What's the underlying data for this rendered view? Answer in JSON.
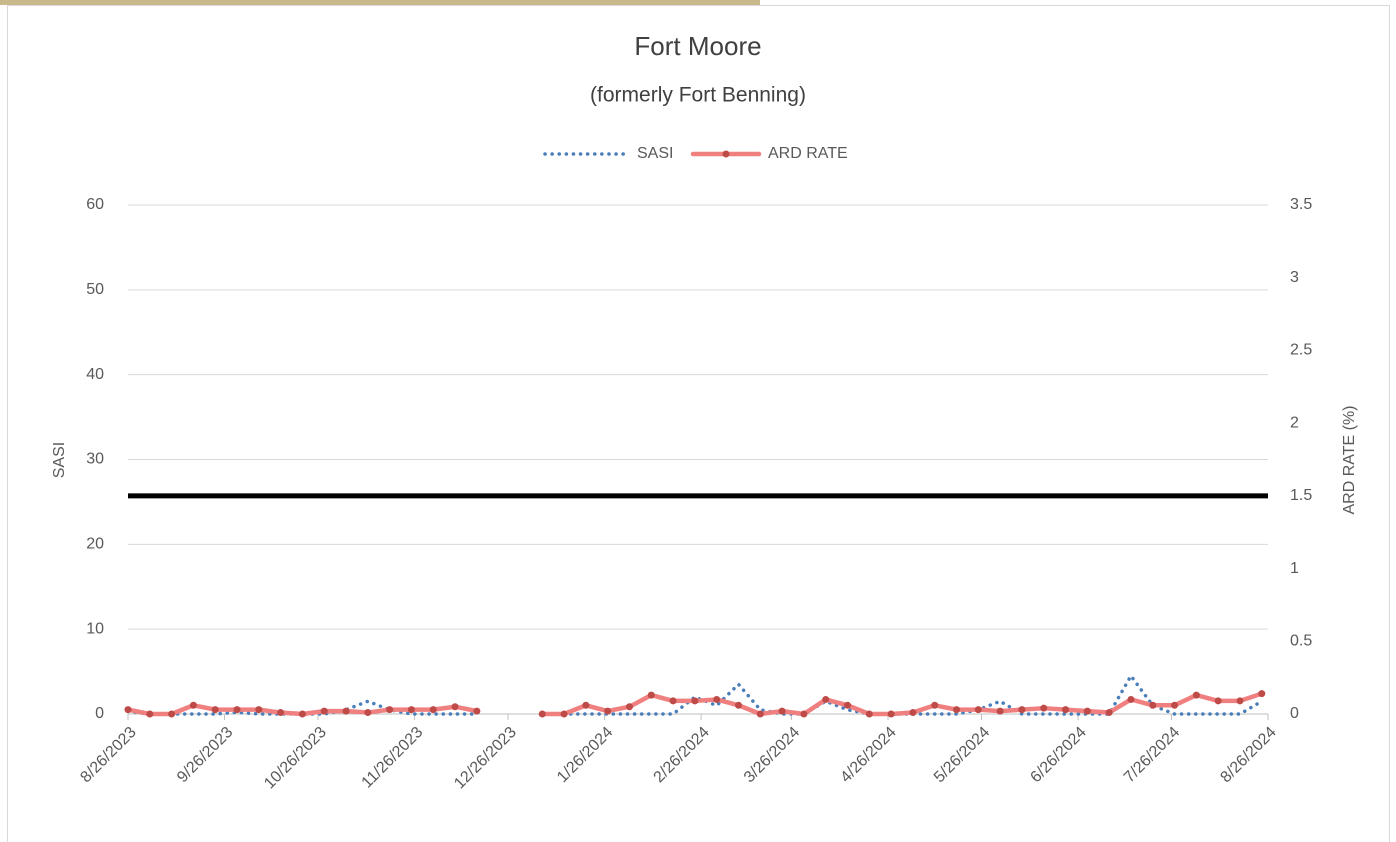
{
  "chart_data": {
    "type": "line",
    "title": "Fort Moore",
    "subtitle": "(formerly Fort Benning)",
    "y_label": "SASI",
    "y2_label": "ARD RATE (%)",
    "x": [
      "8/26/2023",
      "9/2/2023",
      "9/9/2023",
      "9/16/2023",
      "9/23/2023",
      "9/30/2023",
      "10/7/2023",
      "10/14/2023",
      "10/21/2023",
      "10/28/2023",
      "11/4/2023",
      "11/11/2023",
      "11/18/2023",
      "11/25/2023",
      "12/2/2023",
      "12/9/2023",
      "12/16/2023",
      "12/23/2023",
      "12/30/2023",
      "1/6/2024",
      "1/13/2024",
      "1/20/2024",
      "1/27/2024",
      "2/3/2024",
      "2/10/2024",
      "2/17/2024",
      "2/24/2024",
      "3/2/2024",
      "3/9/2024",
      "3/16/2024",
      "3/23/2024",
      "3/30/2024",
      "4/6/2024",
      "4/13/2024",
      "4/20/2024",
      "4/27/2024",
      "5/4/2024",
      "5/11/2024",
      "5/18/2024",
      "5/25/2024",
      "6/1/2024",
      "6/8/2024",
      "6/15/2024",
      "6/22/2024",
      "6/29/2024",
      "7/6/2024",
      "7/13/2024",
      "7/20/2024",
      "7/27/2024",
      "8/3/2024",
      "8/10/2024",
      "8/17/2024",
      "8/24/2024"
    ],
    "series": [
      {
        "name": "SASI",
        "color": "#4a7ebb",
        "style": "dotted",
        "axis": "y",
        "values": [
          0.3,
          0,
          0,
          0,
          0,
          0.2,
          0,
          0,
          0,
          0,
          0.5,
          1.5,
          0.5,
          0,
          0,
          0,
          0,
          null,
          null,
          0,
          0,
          0,
          0,
          0,
          0,
          0,
          2,
          1,
          3.5,
          0.5,
          0,
          0,
          1.5,
          0.5,
          0,
          0,
          0,
          0,
          0,
          0.5,
          1.5,
          0,
          0,
          0,
          0,
          0,
          4.5,
          1,
          0,
          0,
          0,
          0,
          1.5
        ]
      },
      {
        "name": "ARD RATE",
        "color": "#f08080",
        "marker_color": "#be4b48",
        "style": "solid",
        "axis": "y2",
        "values": [
          0.03,
          0,
          0,
          0.06,
          0.03,
          0.03,
          0.03,
          0.01,
          0,
          0.02,
          0.02,
          0.01,
          0.03,
          0.03,
          0.03,
          0.05,
          0.02,
          null,
          null,
          0,
          0,
          0.06,
          0.02,
          0.05,
          0.13,
          0.09,
          0.09,
          0.1,
          0.06,
          0,
          0.02,
          0,
          0.1,
          0.06,
          0,
          0,
          0.01,
          0.06,
          0.03,
          0.03,
          0.02,
          0.03,
          0.04,
          0.03,
          0.02,
          0.01,
          0.1,
          0.06,
          0.06,
          0.13,
          0.09,
          0.09,
          0.14
        ]
      }
    ],
    "reference_line": {
      "value": 1.5,
      "axis": "y2",
      "color": "#000000"
    },
    "xlim": [
      "8/26/2023",
      "8/26/2024"
    ],
    "xticks": [
      "8/26/2023",
      "9/26/2023",
      "10/26/2023",
      "11/26/2023",
      "12/26/2023",
      "1/26/2024",
      "2/26/2024",
      "3/26/2024",
      "4/26/2024",
      "5/26/2024",
      "6/26/2024",
      "7/26/2024",
      "8/26/2024"
    ],
    "ylim": [
      0,
      60
    ],
    "yticks": [
      0,
      10,
      20,
      30,
      40,
      50,
      60
    ],
    "y2lim": [
      0,
      3.5
    ],
    "y2ticks": [
      0,
      0.5,
      1,
      1.5,
      2,
      2.5,
      3,
      3.5
    ],
    "grid": true,
    "legend": "top"
  }
}
